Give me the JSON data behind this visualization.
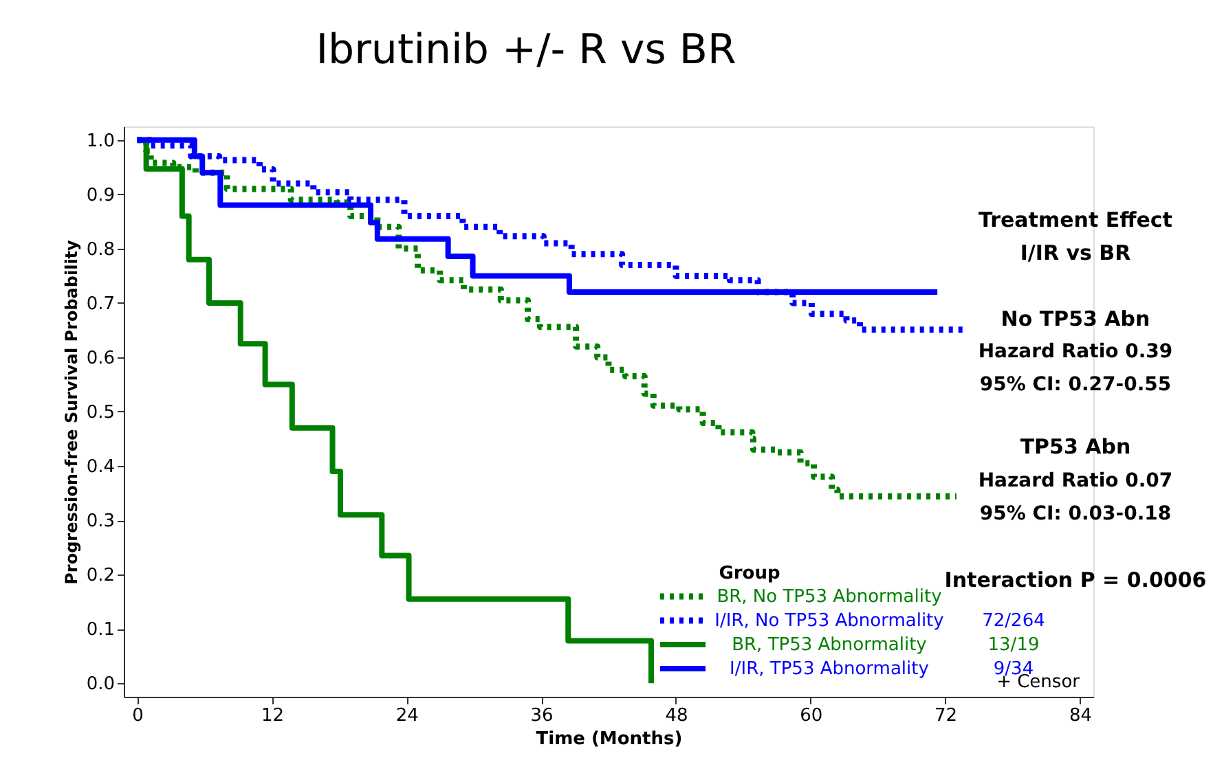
{
  "chart_data": {
    "type": "step",
    "title": "Ibrutinib +/- R vs BR",
    "xlabel": "Time (Months)",
    "ylabel": "Progression-free Survival Probability",
    "legend_title": "Group",
    "legend": "bottom right",
    "grid": false,
    "marker": "none",
    "xlim": [
      -1.2,
      85.2
    ],
    "xticks": [
      0,
      12,
      24,
      36,
      48,
      60,
      72,
      84
    ],
    "ylim": [
      -0.025,
      1.025
    ],
    "yticks": [
      {
        "value": 0,
        "label": "0.0"
      },
      0.1,
      0.2,
      0.3,
      0.4,
      0.5,
      0.6,
      0.7,
      0.8,
      0.9,
      {
        "value": 1,
        "label": "1.0"
      }
    ],
    "series": [
      {
        "name": "BR, No TP53 Abnormality",
        "color": "#008000",
        "line_style": "dotted",
        "x": [
          0,
          0.8,
          1.2,
          3.2,
          5.2,
          8.0,
          13.7,
          17.8,
          19.0,
          21.4,
          23.3,
          25.0,
          26.97,
          29.1,
          32.4,
          34.8,
          35.9,
          39.1,
          41.0,
          42.0,
          43.5,
          45.2,
          46.0,
          48.3,
          50.4,
          51.8,
          54.8,
          54.9,
          56.9,
          59.1,
          60.3,
          61.9,
          62.4,
          73.0
        ],
        "values": [
          1.0,
          0.98,
          0.958,
          0.95,
          0.94,
          0.91,
          0.89,
          0.885,
          0.86,
          0.84,
          0.8,
          0.76,
          0.742,
          0.725,
          0.705,
          0.67,
          0.656,
          0.62,
          0.6,
          0.577,
          0.565,
          0.533,
          0.511,
          0.504,
          0.479,
          0.462,
          0.45,
          0.43,
          0.425,
          0.405,
          0.38,
          0.356,
          0.344,
          0.344
        ]
      },
      {
        "name": "I/IR, No TP53 Abnormality",
        "color": "#0000ff",
        "line_style": "dotted",
        "x": [
          0,
          1.2,
          4.8,
          7.3,
          10.9,
          12.1,
          15.7,
          19.0,
          23.8,
          29.0,
          32.3,
          36.2,
          38.7,
          43.2,
          48.0,
          52.8,
          55.3,
          58.4,
          60.1,
          63.2,
          64.4,
          74.0
        ],
        "values": [
          1.0,
          0.99,
          0.97,
          0.963,
          0.946,
          0.92,
          0.904,
          0.89,
          0.86,
          0.84,
          0.823,
          0.81,
          0.79,
          0.77,
          0.75,
          0.742,
          0.72,
          0.7,
          0.68,
          0.668,
          0.651,
          0.651
        ]
      },
      {
        "name": "BR, TP53 Abnormality",
        "color": "#008000",
        "line_style": "solid",
        "x": [
          0,
          0.8,
          4.0,
          4.6,
          6.4,
          9.2,
          11.4,
          13.8,
          17.4,
          18.1,
          21.8,
          24.2,
          38.4,
          45.8
        ],
        "values": [
          1.0,
          0.947,
          0.86,
          0.78,
          0.7,
          0.625,
          0.55,
          0.47,
          0.39,
          0.31,
          0.235,
          0.155,
          0.078,
          0.0
        ]
      },
      {
        "name": "I/IR, TP53 Abnormality",
        "color": "#0000ff",
        "line_style": "solid",
        "x": [
          0,
          5.1,
          5.8,
          7.4,
          20.8,
          21.4,
          27.7,
          29.9,
          38.5,
          71.3
        ],
        "values": [
          1.0,
          0.97,
          0.94,
          0.88,
          0.848,
          0.818,
          0.786,
          0.75,
          0.72,
          0.72
        ]
      }
    ],
    "annotations": [
      "Treatment Effect",
      "I/IR vs BR",
      "No TP53 Abn",
      "Hazard Ratio 0.39",
      "95% CI: 0.27-0.55",
      "TP53 Abn",
      "Hazard Ratio 0.07",
      "95% CI: 0.03-0.18",
      "Interaction P = 0.0006",
      "72/264",
      "13/19",
      "9/34",
      "+ Censor"
    ]
  }
}
